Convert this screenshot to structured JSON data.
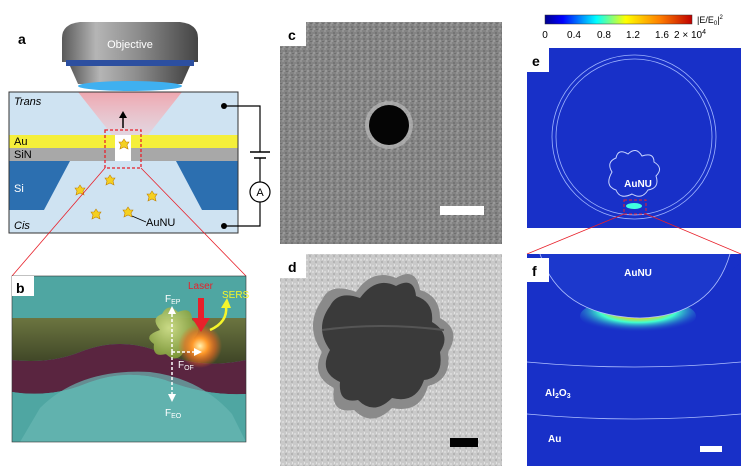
{
  "panels": {
    "a": {
      "letter": "a",
      "objective_label": "Objective",
      "layers": {
        "trans": "Trans",
        "au": "Au",
        "sin": "SiN",
        "si": "Si",
        "cis": "Cis"
      },
      "particle_label": "AuNU",
      "ammeter": "A"
    },
    "b": {
      "letter": "b",
      "labels": {
        "laser": "Laser",
        "sers": "SERS",
        "fep_main": "F",
        "fep_sub": "EP",
        "fof_main": "F",
        "fof_sub": "OF",
        "feo_main": "F",
        "feo_sub": "EO"
      }
    },
    "c": {
      "letter": "c"
    },
    "d": {
      "letter": "d"
    },
    "e": {
      "letter": "e",
      "particle_label": "AuNU",
      "colorbar": {
        "ticks": [
          "0",
          "0.4",
          "0.8",
          "1.2",
          "1.6"
        ],
        "max_tick_main": "2 × 10",
        "max_tick_exp": "4",
        "quantity_main": "|E/E",
        "quantity_sub": "0",
        "quantity_tail": "|",
        "quantity_exp": "2"
      }
    },
    "f": {
      "letter": "f",
      "particle_label": "AuNU",
      "oxide_main": "Al",
      "oxide_sub1": "2",
      "oxide_mid": "O",
      "oxide_sub2": "3",
      "metal_label": "Au"
    }
  },
  "colors": {
    "trans_bg": "#cfe3f2",
    "au_layer": "#f5ef3a",
    "sin_layer": "#a8a8a8",
    "si_layer": "#2c6fb0",
    "field_bg": "#1830c8",
    "laser": "#e8202a",
    "sers": "#f5f52a"
  }
}
